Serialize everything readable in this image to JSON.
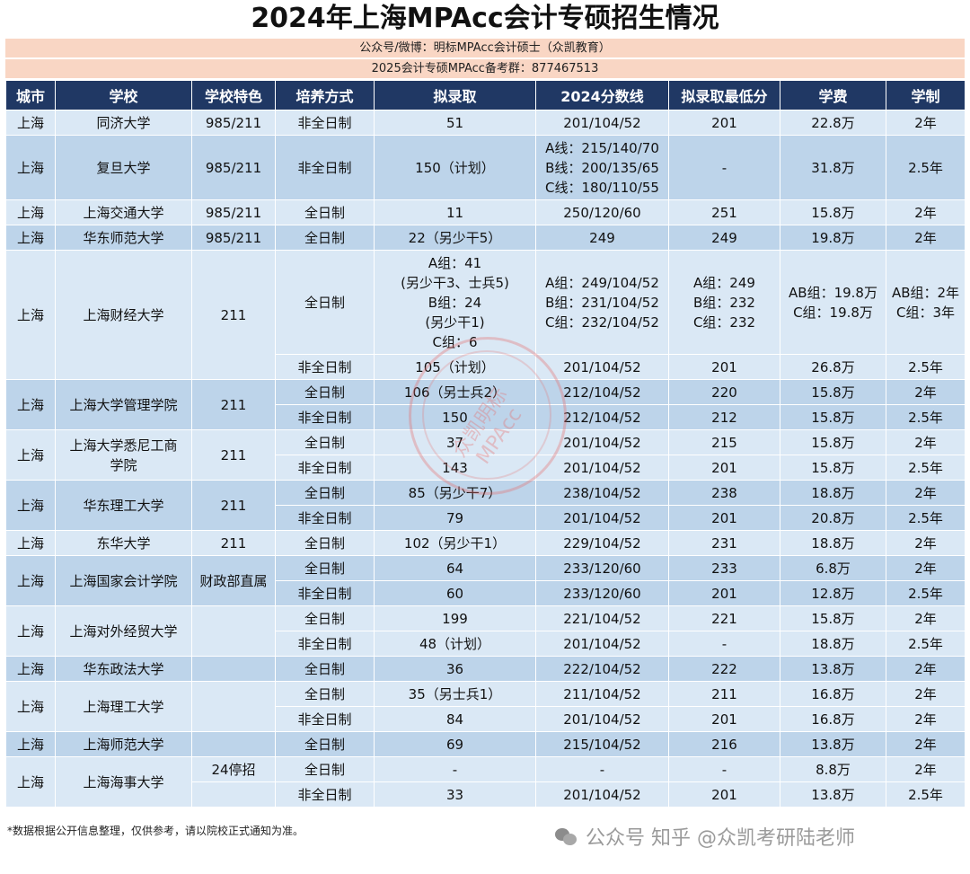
{
  "title": "2024年上海MPAcc会计专硕招生情况",
  "subtitle1": "公众号/微博：明标MPAcc会计硕士（众凯教育）",
  "subtitle2": "2025会计专硕MPAcc备考群：877467513",
  "headers": [
    "城市",
    "学校",
    "学校特色",
    "培养方式",
    "拟录取",
    "2024分数线",
    "拟录取最低分",
    "学费",
    "学制"
  ],
  "rows": {
    "tongji": {
      "city": "上海",
      "school": "同济大学",
      "feature": "985/211",
      "mode": "非全日制",
      "admit": "51",
      "line": "201/104/52",
      "min": "201",
      "fee": "22.8万",
      "years": "2年"
    },
    "fudan": {
      "city": "上海",
      "school": "复旦大学",
      "feature": "985/211",
      "mode": "非全日制",
      "admit": "150（计划）",
      "line1": "A线：215/140/70",
      "line2": "B线：200/135/65",
      "line3": "C线：180/110/55",
      "min": "-",
      "fee": "31.8万",
      "years": "2.5年"
    },
    "sjtu": {
      "city": "上海",
      "school": "上海交通大学",
      "feature": "985/211",
      "mode": "全日制",
      "admit": "11",
      "line": "250/120/60",
      "min": "251",
      "fee": "15.8万",
      "years": "2年"
    },
    "ecnu": {
      "city": "上海",
      "school": "华东师范大学",
      "feature": "985/211",
      "mode": "全日制",
      "admit": "22（另少干5）",
      "line": "249",
      "min": "249",
      "fee": "19.8万",
      "years": "2年"
    },
    "sufe": {
      "city": "上海",
      "school": "上海财经大学",
      "feature": "211",
      "ft": {
        "mode": "全日制",
        "admit1": "A组：41",
        "admit2": "(另少干3、士兵5)",
        "admit3": "B组：24",
        "admit4": "(另少干1)",
        "admit5": "C组：6",
        "line1": "A组：249/104/52",
        "line2": "B组：231/104/52",
        "line3": "C组：232/104/52",
        "min1": "A组：249",
        "min2": "B组：232",
        "min3": "C组：232",
        "fee1": "AB组：19.8万",
        "fee2": "C组：19.8万",
        "years1": "AB组：2年",
        "years2": "C组：3年"
      },
      "pt": {
        "mode": "非全日制",
        "admit": "105（计划）",
        "line": "201/104/52",
        "min": "201",
        "fee": "26.8万",
        "years": "2.5年"
      }
    },
    "shu_mgmt": {
      "city": "上海",
      "school": "上海大学管理学院",
      "feature": "211",
      "ft": {
        "mode": "全日制",
        "admit": "106（另士兵2）",
        "line": "212/104/52",
        "min": "220",
        "fee": "15.8万",
        "years": "2年"
      },
      "pt": {
        "mode": "非全日制",
        "admit": "150",
        "line": "212/104/52",
        "min": "212",
        "fee": "15.8万",
        "years": "2.5年"
      }
    },
    "shu_sydney": {
      "city": "上海",
      "school1": "上海大学悉尼工商",
      "school2": "学院",
      "feature": "211",
      "ft": {
        "mode": "全日制",
        "admit": "37",
        "line": "201/104/52",
        "min": "215",
        "fee": "15.8万",
        "years": "2年"
      },
      "pt": {
        "mode": "非全日制",
        "admit": "143",
        "line": "201/104/52",
        "min": "201",
        "fee": "15.8万",
        "years": "2.5年"
      }
    },
    "ecust": {
      "city": "上海",
      "school": "华东理工大学",
      "feature": "211",
      "ft": {
        "mode": "全日制",
        "admit": "85（另少干7）",
        "line": "238/104/52",
        "min": "238",
        "fee": "18.8万",
        "years": "2年"
      },
      "pt": {
        "mode": "非全日制",
        "admit": "79",
        "line": "201/104/52",
        "min": "201",
        "fee": "20.8万",
        "years": "2.5年"
      }
    },
    "dhu": {
      "city": "上海",
      "school": "东华大学",
      "feature": "211",
      "mode": "全日制",
      "admit": "102（另少干1）",
      "line": "229/104/52",
      "min": "231",
      "fee": "18.8万",
      "years": "2年"
    },
    "snai": {
      "city": "上海",
      "school": "上海国家会计学院",
      "feature": "财政部直属",
      "ft": {
        "mode": "全日制",
        "admit": "64",
        "line": "233/120/60",
        "min": "233",
        "fee": "6.8万",
        "years": "2年"
      },
      "pt": {
        "mode": "非全日制",
        "admit": "60",
        "line": "233/120/60",
        "min": "201",
        "fee": "12.8万",
        "years": "2.5年"
      }
    },
    "suibe": {
      "city": "上海",
      "school": "上海对外经贸大学",
      "feature": "",
      "ft": {
        "mode": "全日制",
        "admit": "199",
        "line": "221/104/52",
        "min": "221",
        "fee": "15.8万",
        "years": "2年"
      },
      "pt": {
        "mode": "非全日制",
        "admit": "48（计划）",
        "line": "201/104/52",
        "min": "-",
        "fee": "18.8万",
        "years": "2.5年"
      }
    },
    "ecupl": {
      "city": "上海",
      "school": "华东政法大学",
      "feature": "",
      "mode": "全日制",
      "admit": "36",
      "line": "222/104/52",
      "min": "222",
      "fee": "13.8万",
      "years": "2年"
    },
    "usst": {
      "city": "上海",
      "school": "上海理工大学",
      "feature": "",
      "ft": {
        "mode": "全日制",
        "admit": "35（另士兵1）",
        "line": "211/104/52",
        "min": "211",
        "fee": "16.8万",
        "years": "2年"
      },
      "pt": {
        "mode": "非全日制",
        "admit": "84",
        "line": "201/104/52",
        "min": "201",
        "fee": "16.8万",
        "years": "2年"
      }
    },
    "shnu": {
      "city": "上海",
      "school": "上海师范大学",
      "feature": "",
      "mode": "全日制",
      "admit": "69",
      "line": "215/104/52",
      "min": "216",
      "fee": "13.8万",
      "years": "2年"
    },
    "shmtu": {
      "city": "上海",
      "school": "上海海事大学",
      "feature": "24停招",
      "feature2": "",
      "ft": {
        "mode": "全日制",
        "admit": "-",
        "line": "-",
        "min": "-",
        "fee": "8.8万",
        "years": "2年"
      },
      "pt": {
        "mode": "非全日制",
        "admit": "33",
        "line": "201/104/52",
        "min": "201",
        "fee": "13.8万",
        "years": "2.5年"
      }
    }
  },
  "note": "*数据根据公开信息整理，仅供参考，请以院校正式通知为准。",
  "watermark_footer": "公众号 知乎 @众凯考研陆老师",
  "stamp_text": "众凯明标MPAcc"
}
